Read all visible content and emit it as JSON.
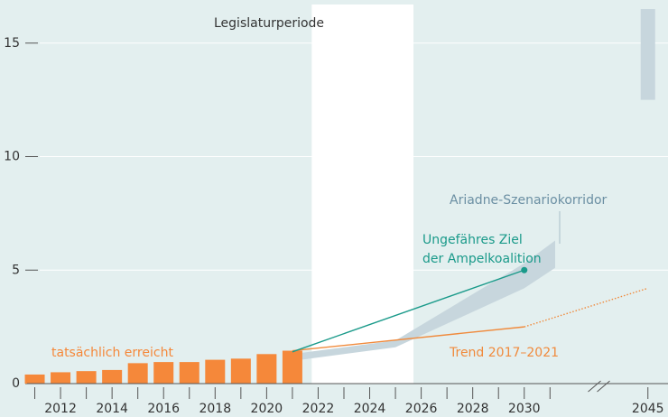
{
  "chart_data": {
    "type": "bar",
    "period_label": "Legislaturperiode",
    "highlight_span": [
      2021.75,
      2025.7
    ],
    "xlim": [
      2009.65,
      2045.78
    ],
    "axis_break": [
      2032,
      2044
    ],
    "xticks": [
      2012,
      2014,
      2016,
      2018,
      2020,
      2022,
      2024,
      2026,
      2028,
      2030,
      2045
    ],
    "xminor_ticks": [
      2011,
      2013,
      2015,
      2017,
      2019,
      2021,
      2023,
      2025,
      2027,
      2029,
      2031
    ],
    "ylim": [
      0,
      16.7
    ],
    "yticks": [
      0,
      5,
      10,
      15
    ],
    "grid": true,
    "bars": {
      "name": "tatsächlich erreicht",
      "color": "#f5883a",
      "x": [
        2011,
        2012,
        2013,
        2014,
        2015,
        2016,
        2017,
        2018,
        2019,
        2020,
        2021
      ],
      "values": [
        0.4,
        0.5,
        0.55,
        0.6,
        0.9,
        0.95,
        0.95,
        1.05,
        1.1,
        1.3,
        1.45
      ]
    },
    "target": {
      "name": [
        "Ungefähres Ziel",
        "der Ampelkoalition"
      ],
      "color": "#1a9a8a",
      "x": [
        2021,
        2030
      ],
      "values": [
        1.4,
        5.0
      ]
    },
    "trend": {
      "name": "Trend 2017–2021",
      "color": "#f08a3c",
      "x": [
        2021,
        2030
      ],
      "values": [
        1.45,
        2.5
      ]
    },
    "trend_extension": {
      "color": "#f08a3c",
      "x": [
        2030,
        2045
      ],
      "values": [
        2.5,
        4.2
      ]
    },
    "corridor": {
      "name": "Ariadne-Szenariokorridor",
      "color": "#c7d6dd",
      "x": [
        2021,
        2025,
        2030,
        2031.2
      ],
      "lower": [
        1.0,
        1.6,
        4.2,
        5.1
      ],
      "upper": [
        1.3,
        1.9,
        5.3,
        6.3
      ]
    },
    "corridor_2045": {
      "color": "#c7d6dd",
      "x": 2045,
      "lower": 12.5,
      "upper": 16.5
    }
  }
}
